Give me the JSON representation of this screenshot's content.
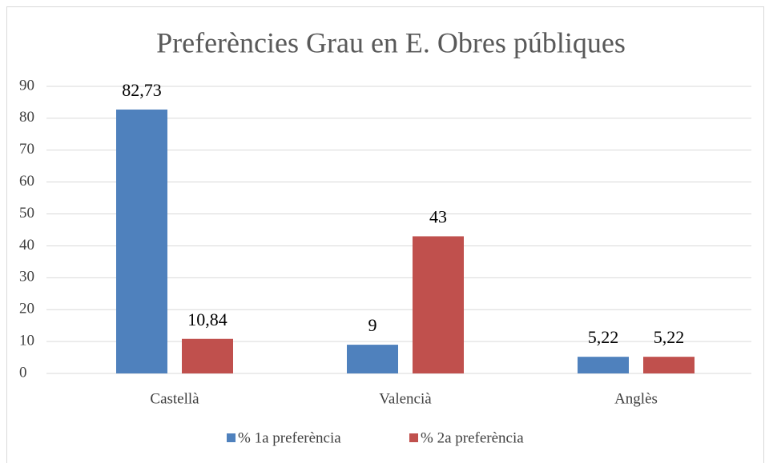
{
  "chart_data": {
    "type": "bar",
    "title": "Preferències Grau en E. Obres públiques",
    "categories": [
      "Castellà",
      "Valencià",
      "Anglès"
    ],
    "series": [
      {
        "name": "% 1a preferència",
        "color": "#4f81bd",
        "values": [
          82.73,
          9,
          5.22
        ],
        "value_labels": [
          "82,73",
          "9",
          "5,22"
        ]
      },
      {
        "name": "% 2a preferència",
        "color": "#c0504d",
        "values": [
          10.84,
          43,
          5.22
        ],
        "value_labels": [
          "10,84",
          "43",
          "5,22"
        ]
      }
    ],
    "ylim": [
      0,
      90
    ],
    "yticks": [
      0,
      10,
      20,
      30,
      40,
      50,
      60,
      70,
      80,
      90
    ],
    "grid": true,
    "legend": "bottom"
  }
}
